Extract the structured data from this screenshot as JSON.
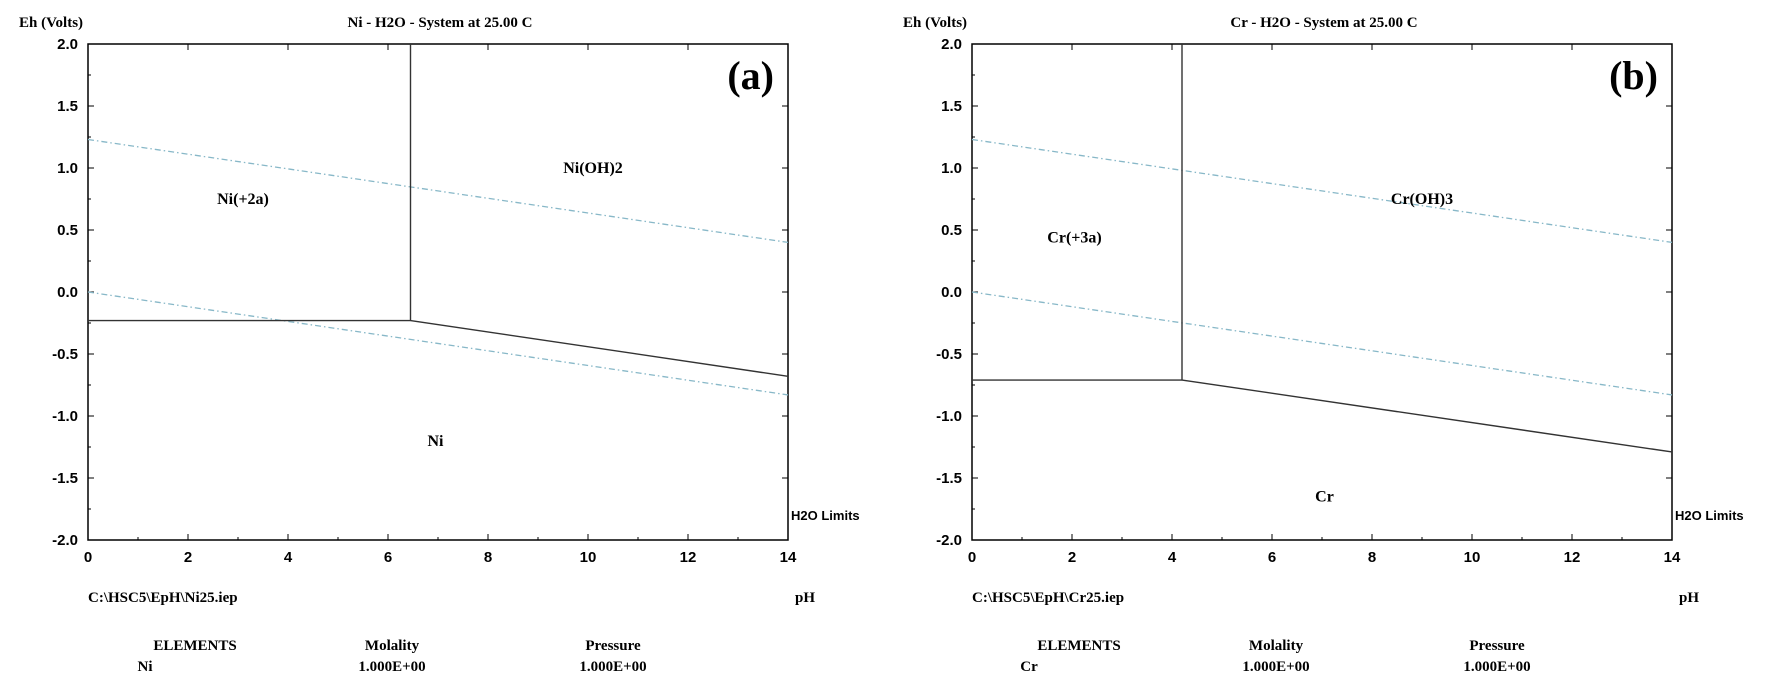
{
  "panels": [
    {
      "id": "ni",
      "label": "(a)",
      "title": "Ni - H2O - System at 25.00 C",
      "y_axis_label": "Eh (Volts)",
      "x_axis_label": "pH",
      "h2o_limits_label": "H2O Limits",
      "file_path": "C:\\HSC5\\EpH\\Ni25.iep",
      "footer": {
        "headers": [
          "ELEMENTS",
          "Molality",
          "Pressure"
        ],
        "row": [
          "Ni",
          "1.000E+00",
          "1.000E+00"
        ]
      },
      "region_labels": [
        {
          "text": "Ni(+2a)",
          "x": 3.1,
          "y": 0.75
        },
        {
          "text": "Ni(OH)2",
          "x": 10.1,
          "y": 1.0
        },
        {
          "text": "Ni",
          "x": 6.95,
          "y": -1.2
        }
      ]
    },
    {
      "id": "cr",
      "label": "(b)",
      "title": "Cr - H2O - System at 25.00 C",
      "y_axis_label": "Eh (Volts)",
      "x_axis_label": "pH",
      "h2o_limits_label": "H2O Limits",
      "file_path": "C:\\HSC5\\EpH\\Cr25.iep",
      "footer": {
        "headers": [
          "ELEMENTS",
          "Molality",
          "Pressure"
        ],
        "row": [
          "Cr",
          "1.000E+00",
          "1.000E+00"
        ]
      },
      "region_labels": [
        {
          "text": "Cr(+3a)",
          "x": 2.05,
          "y": 0.44
        },
        {
          "text": "Cr(OH)3",
          "x": 9.0,
          "y": 0.75
        },
        {
          "text": "Cr",
          "x": 7.05,
          "y": -1.65
        }
      ]
    }
  ],
  "chart_data": [
    {
      "type": "line",
      "title": "Ni - H2O - System at 25.00 C",
      "xlabel": "pH",
      "ylabel": "Eh (Volts)",
      "xlim": [
        0,
        14
      ],
      "ylim": [
        -2.0,
        2.0
      ],
      "x_ticks": [
        0,
        2,
        4,
        6,
        8,
        10,
        12,
        14
      ],
      "y_ticks": [
        2.0,
        1.5,
        1.0,
        0.5,
        0.0,
        -0.5,
        -1.0,
        -1.5,
        -2.0
      ],
      "y_tick_labels": [
        "2.0",
        "1.5",
        "1.0",
        "0.5",
        "0.0",
        "-0.5",
        "-1.0",
        "-1.5",
        "-2.0"
      ],
      "x_tick_labels": [
        "0",
        "2",
        "4",
        "6",
        "8",
        "10",
        "12",
        "14"
      ],
      "boundaries": [
        {
          "x": [
            0,
            6.45
          ],
          "y": [
            -0.23,
            -0.23
          ]
        },
        {
          "x": [
            6.45,
            6.45
          ],
          "y": [
            -0.23,
            2.0
          ]
        },
        {
          "x": [
            6.45,
            14
          ],
          "y": [
            -0.23,
            -0.68
          ]
        }
      ],
      "water_limits": [
        {
          "x": [
            0,
            14
          ],
          "y": [
            1.23,
            0.4
          ]
        },
        {
          "x": [
            0,
            14
          ],
          "y": [
            0.0,
            -0.83
          ]
        }
      ]
    },
    {
      "type": "line",
      "title": "Cr - H2O - System at 25.00 C",
      "xlabel": "pH",
      "ylabel": "Eh (Volts)",
      "xlim": [
        0,
        14
      ],
      "ylim": [
        -2.0,
        2.0
      ],
      "x_ticks": [
        0,
        2,
        4,
        6,
        8,
        10,
        12,
        14
      ],
      "y_ticks": [
        2.0,
        1.5,
        1.0,
        0.5,
        0.0,
        -0.5,
        -1.0,
        -1.5,
        -2.0
      ],
      "y_tick_labels": [
        "2.0",
        "1.5",
        "1.0",
        "0.5",
        "0.0",
        "-0.5",
        "-1.0",
        "-1.5",
        "-2.0"
      ],
      "x_tick_labels": [
        "0",
        "2",
        "4",
        "6",
        "8",
        "10",
        "12",
        "14"
      ],
      "boundaries": [
        {
          "x": [
            0,
            4.2
          ],
          "y": [
            -0.71,
            -0.71
          ]
        },
        {
          "x": [
            4.2,
            4.2
          ],
          "y": [
            -0.71,
            2.0
          ]
        },
        {
          "x": [
            4.2,
            14
          ],
          "y": [
            -0.71,
            -1.29
          ]
        }
      ],
      "water_limits": [
        {
          "x": [
            0,
            14
          ],
          "y": [
            1.23,
            0.4
          ]
        },
        {
          "x": [
            0,
            14
          ],
          "y": [
            0.0,
            -0.83
          ]
        }
      ]
    }
  ],
  "colors": {
    "axis": "#000000",
    "boundary": "#333333",
    "water_limit": "#88b8c8"
  }
}
